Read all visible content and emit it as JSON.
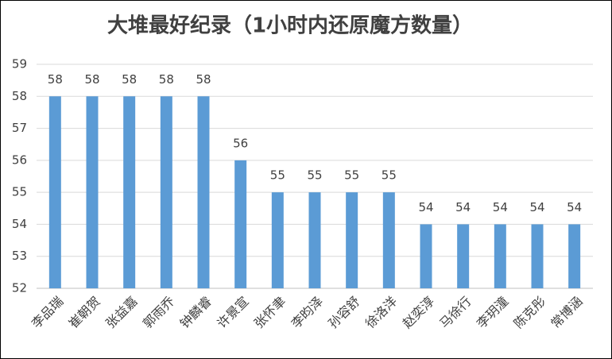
{
  "chart_data": {
    "type": "bar",
    "title": "大堆最好纪录（1小时内还原魔方数量）",
    "categories": [
      "李品瑞",
      "崔朝贺",
      "张益嘉",
      "郭雨乔",
      "钟麟睿",
      "许景宣",
      "张怀聿",
      "李昀泽",
      "孙容舒",
      "徐洛洋",
      "赵奕淳",
      "马徐行",
      "李玥潼",
      "陈克彤",
      "常博涵"
    ],
    "values": [
      58,
      58,
      58,
      58,
      58,
      56,
      55,
      55,
      55,
      55,
      54,
      54,
      54,
      54,
      54
    ],
    "color": "#5b9bd5",
    "ylim": [
      52,
      59
    ],
    "yticks": [
      52,
      53,
      54,
      55,
      56,
      57,
      58,
      59
    ],
    "grid": true,
    "data_labels": true
  }
}
